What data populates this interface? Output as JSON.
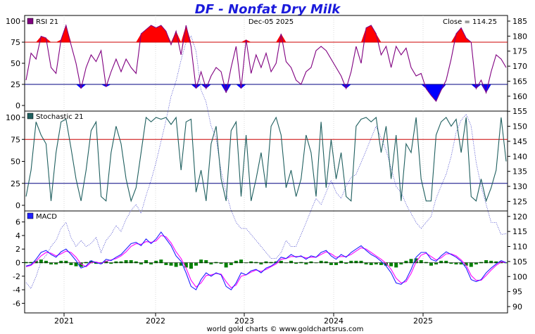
{
  "header": {
    "title": "DF - Nonfat Dry Milk",
    "date": "Dec-05  2025",
    "close_text": "Close = 114.25"
  },
  "footer": {
    "credit": "world gold charts © www.goldchartsrus.com"
  },
  "colors": {
    "title": "#1a1adb",
    "rsi_line": "#800080",
    "rsi_over": "#ff0000",
    "rsi_under": "#0000ff",
    "stoch_line": "#1f5f5f",
    "macd_line": "#2020ff",
    "macd_signal": "#ff00ff",
    "macd_hist": "#008000",
    "price_line": "#2020c0",
    "upper_ref": "#cc0000",
    "lower_ref": "#000080"
  },
  "chart_data": [
    {
      "type": "line",
      "panel": "rsi",
      "legend": "RSI 21",
      "left_ticks": [
        "100",
        "75",
        "50",
        "25",
        "0"
      ],
      "ylim": [
        0,
        100
      ],
      "ref_lines": [
        75,
        25
      ],
      "x_labels": [
        "2021",
        "2022",
        "2023",
        "2024",
        "2025"
      ],
      "series": [
        {
          "name": "RSI 21",
          "values": [
            30,
            62,
            55,
            82,
            80,
            45,
            38,
            78,
            95,
            72,
            50,
            20,
            45,
            60,
            52,
            65,
            22,
            40,
            55,
            40,
            55,
            45,
            38,
            85,
            90,
            95,
            92,
            95,
            88,
            72,
            88,
            60,
            95,
            70,
            20,
            40,
            20,
            35,
            45,
            40,
            15,
            45,
            70,
            20,
            78,
            38,
            60,
            45,
            62,
            40,
            50,
            85,
            52,
            45,
            30,
            25,
            40,
            45,
            65,
            70,
            65,
            55,
            45,
            35,
            20,
            40,
            70,
            50,
            92,
            95,
            85,
            60,
            70,
            45,
            70,
            60,
            68,
            45,
            35,
            38,
            20,
            12,
            5,
            18,
            30,
            55,
            85,
            92,
            80,
            75,
            20,
            30,
            15,
            40,
            60,
            55,
            45
          ]
        }
      ]
    },
    {
      "type": "line",
      "panel": "stochastic",
      "legend": "Stochastic 21",
      "left_ticks": [
        "100",
        "75",
        "50",
        "25",
        "0"
      ],
      "ylim": [
        0,
        100
      ],
      "ref_lines": [
        75,
        25
      ],
      "series": [
        {
          "name": "Stochastic 21",
          "values": [
            10,
            40,
            95,
            80,
            70,
            5,
            60,
            95,
            98,
            65,
            30,
            5,
            40,
            85,
            95,
            10,
            5,
            60,
            90,
            70,
            30,
            5,
            20,
            60,
            100,
            95,
            100,
            98,
            100,
            92,
            100,
            40,
            95,
            98,
            15,
            40,
            5,
            70,
            90,
            30,
            5,
            85,
            95,
            10,
            80,
            5,
            30,
            60,
            20,
            90,
            100,
            80,
            20,
            40,
            10,
            30,
            80,
            60,
            10,
            95,
            20,
            75,
            30,
            60,
            10,
            5,
            90,
            98,
            100,
            95,
            100,
            60,
            90,
            30,
            80,
            5,
            70,
            60,
            100,
            30,
            5,
            5,
            80,
            95,
            100,
            90,
            98,
            60,
            100,
            10,
            5,
            30,
            5,
            20,
            40,
            100,
            50
          ]
        }
      ]
    },
    {
      "type": "line",
      "panel": "macd",
      "legend": "MACD",
      "left_ticks": [
        "6",
        "4",
        "2",
        "0",
        "-2",
        "-4",
        "-6"
      ],
      "ylim": [
        -7,
        7
      ],
      "series": [
        {
          "name": "MACD",
          "values": [
            -0.5,
            -0.3,
            0.5,
            1.5,
            1.8,
            1.2,
            0.8,
            1.6,
            2.0,
            1.2,
            0.3,
            -0.8,
            -0.5,
            0.3,
            0.0,
            -0.2,
            0.5,
            0.3,
            0.8,
            1.2,
            2.0,
            2.8,
            3.0,
            2.5,
            3.5,
            2.8,
            3.5,
            4.5,
            3.5,
            2.5,
            1.0,
            0.2,
            -1.5,
            -3.5,
            -4.0,
            -2.5,
            -1.5,
            -2.0,
            -1.5,
            -1.8,
            -3.5,
            -4.0,
            -3.0,
            -1.5,
            -1.8,
            -1.2,
            -1.0,
            -1.5,
            -0.8,
            -0.5,
            0.0,
            0.8,
            0.6,
            1.2,
            0.8,
            1.0,
            0.5,
            1.0,
            0.8,
            1.5,
            1.8,
            1.0,
            0.5,
            1.2,
            0.8,
            1.5,
            2.0,
            2.5,
            1.8,
            1.2,
            0.8,
            0.2,
            -0.5,
            -1.5,
            -3.0,
            -3.2,
            -2.5,
            -1.0,
            0.8,
            1.5,
            1.5,
            0.5,
            0.2,
            1.0,
            1.6,
            1.2,
            0.8,
            0.2,
            -0.8,
            -2.5,
            -2.8,
            -2.5,
            -1.5,
            -0.8,
            -0.2,
            0.3,
            0.0
          ]
        },
        {
          "name": "Signal",
          "values": [
            -0.6,
            -0.4,
            0.2,
            1.0,
            1.5,
            1.4,
            1.0,
            1.3,
            1.7,
            1.5,
            0.8,
            -0.2,
            -0.6,
            0.0,
            0.1,
            -0.1,
            0.2,
            0.4,
            0.6,
            1.0,
            1.6,
            2.4,
            2.8,
            2.7,
            3.1,
            3.0,
            3.2,
            4.0,
            3.8,
            2.9,
            1.6,
            0.6,
            -0.8,
            -2.6,
            -3.6,
            -3.0,
            -1.9,
            -1.8,
            -1.6,
            -1.7,
            -2.8,
            -3.7,
            -3.3,
            -2.0,
            -1.8,
            -1.4,
            -1.1,
            -1.3,
            -1.0,
            -0.6,
            -0.2,
            0.5,
            0.6,
            0.9,
            0.9,
            0.9,
            0.7,
            0.8,
            0.8,
            1.2,
            1.6,
            1.3,
            0.8,
            0.9,
            0.9,
            1.2,
            1.7,
            2.2,
            2.0,
            1.5,
            1.0,
            0.5,
            -0.1,
            -1.0,
            -2.3,
            -3.0,
            -2.8,
            -1.6,
            0.1,
            1.1,
            1.4,
            0.9,
            0.4,
            0.7,
            1.3,
            1.3,
            1.0,
            0.4,
            -0.4,
            -1.9,
            -2.6,
            -2.6,
            -1.9,
            -1.1,
            -0.4,
            0.1,
            0.0
          ]
        }
      ]
    },
    {
      "type": "line",
      "panel": "price",
      "right_ticks": [
        "185",
        "180",
        "175",
        "170",
        "165",
        "160",
        "155",
        "150",
        "145",
        "140",
        "135",
        "130",
        "125",
        "120",
        "115",
        "110",
        "105",
        "100",
        "95",
        "90"
      ],
      "ylim": [
        88,
        187
      ],
      "series": [
        {
          "name": "Close",
          "values": [
            98,
            96,
            100,
            105,
            107,
            110,
            112,
            116,
            118,
            113,
            110,
            112,
            110,
            111,
            113,
            108,
            112,
            114,
            117,
            115,
            119,
            122,
            124,
            121,
            127,
            132,
            138,
            145,
            152,
            160,
            165,
            172,
            178,
            180,
            175,
            162,
            158,
            150,
            146,
            135,
            128,
            122,
            118,
            116,
            116,
            114,
            112,
            110,
            108,
            106,
            106,
            108,
            112,
            110,
            110,
            114,
            118,
            122,
            126,
            124,
            128,
            132,
            128,
            126,
            130,
            133,
            134,
            138,
            142,
            146,
            150,
            146,
            142,
            136,
            130,
            128,
            124,
            121,
            118,
            116,
            118,
            120,
            126,
            130,
            134,
            140,
            148,
            152,
            154,
            150,
            138,
            130,
            124,
            118,
            118,
            114,
            114.25
          ]
        }
      ]
    }
  ]
}
